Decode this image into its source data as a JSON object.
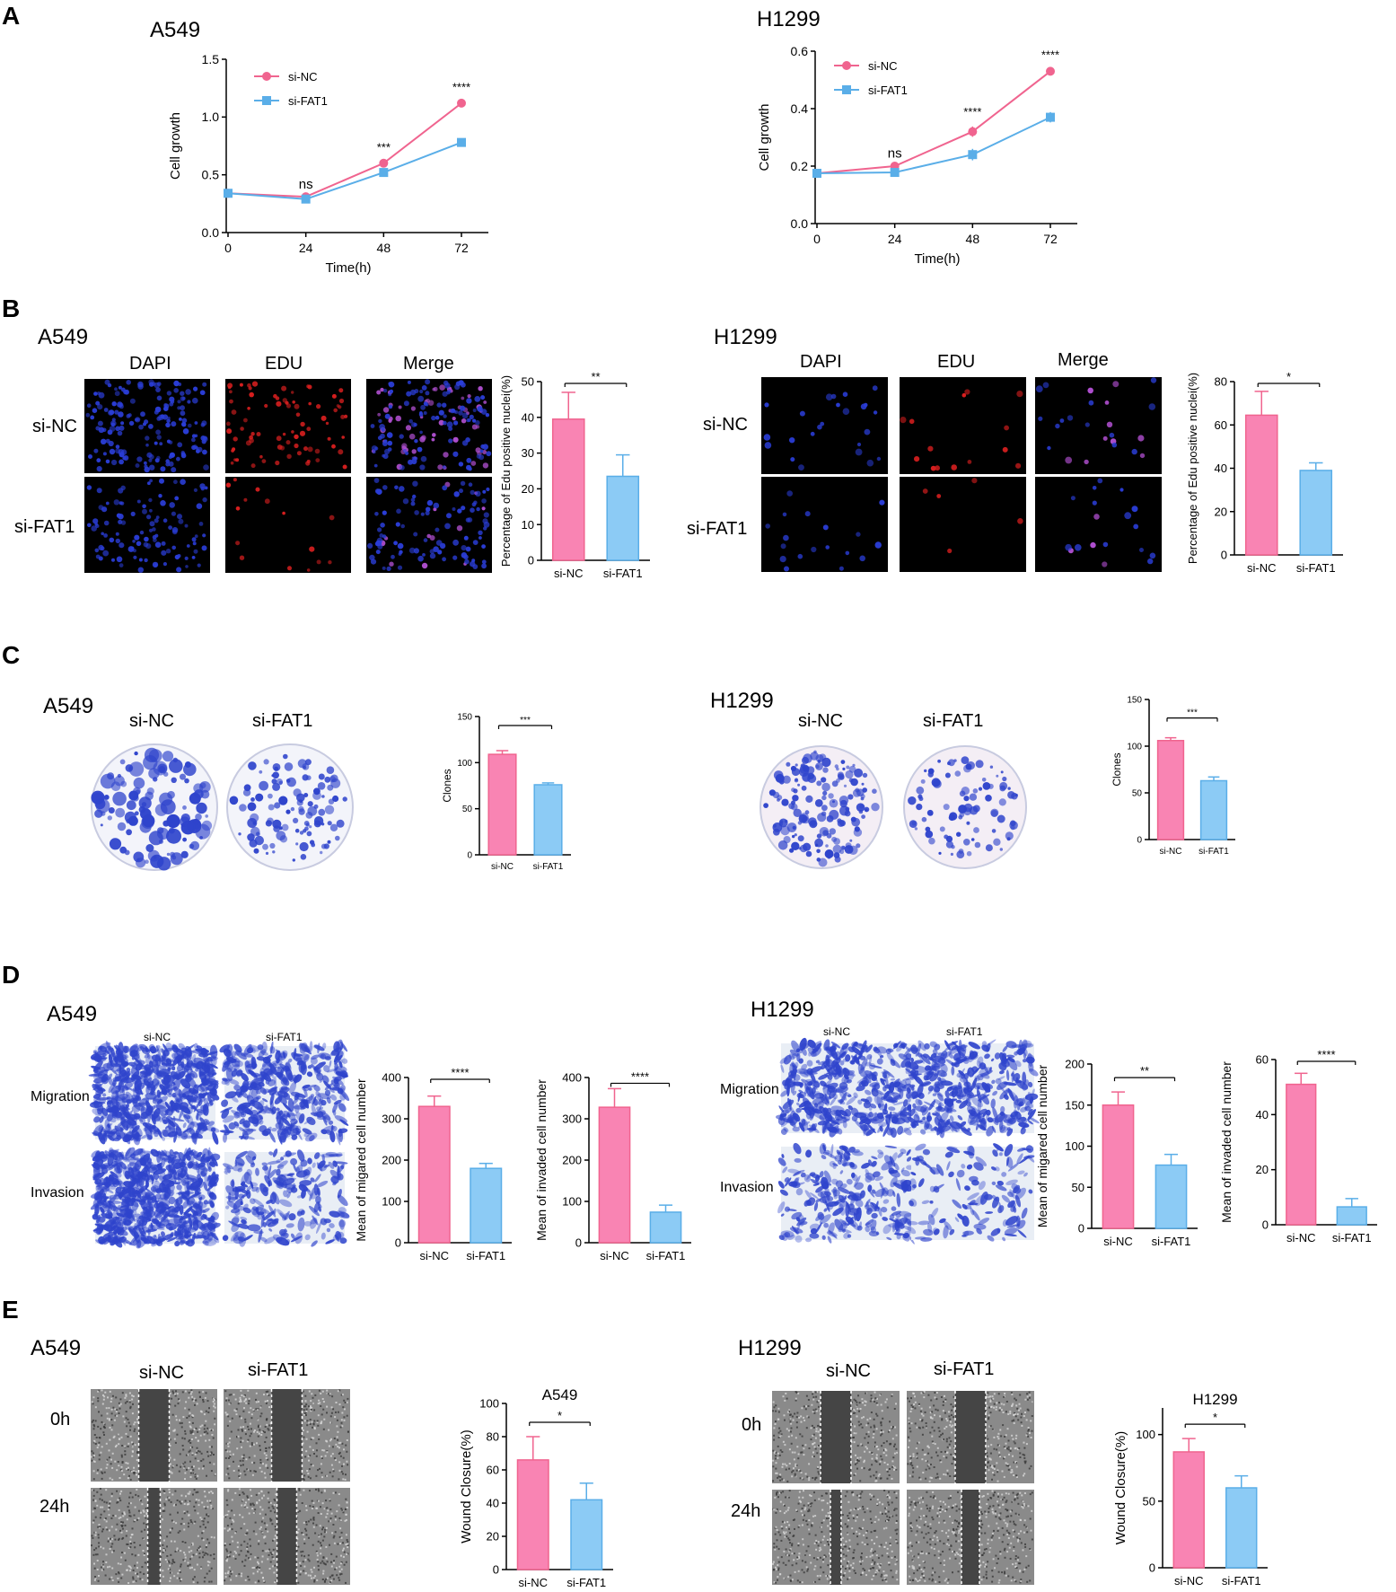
{
  "colors": {
    "pink": "#f0648f",
    "pink_fill": "#f984b3",
    "blue": "#5aaee8",
    "blue_fill": "#8ccbf5",
    "dapi": "#2a3dd6",
    "edu": "#d91f1f",
    "crystal": "#2f44cc"
  },
  "panels": {
    "A": {
      "letter": "A",
      "left": {
        "title": "A549"
      },
      "right": {
        "title": "H1299"
      }
    },
    "B": {
      "letter": "B",
      "left": {
        "title": "A549",
        "cols": [
          "DAPI",
          "EDU",
          "Merge"
        ],
        "rows": [
          "si-NC",
          "si-FAT1"
        ]
      },
      "right": {
        "title": "H1299",
        "cols": [
          "DAPI",
          "EDU",
          "Merge"
        ],
        "rows": [
          "si-NC",
          "si-FAT1"
        ]
      }
    },
    "C": {
      "letter": "C",
      "left": {
        "title": "A549",
        "cols": [
          "si-NC",
          "si-FAT1"
        ]
      },
      "right": {
        "title": "H1299",
        "cols": [
          "si-NC",
          "si-FAT1"
        ]
      }
    },
    "D": {
      "letter": "D",
      "left": {
        "title": "A549",
        "cols": [
          "si-NC",
          "si-FAT1"
        ],
        "rows": [
          "Migration",
          "Invasion"
        ]
      },
      "right": {
        "title": "H1299",
        "cols": [
          "si-NC",
          "si-FAT1"
        ],
        "rows": [
          "Migration",
          "Invasion"
        ]
      }
    },
    "E": {
      "letter": "E",
      "left": {
        "title": "A549",
        "cols": [
          "si-NC",
          "si-FAT1"
        ],
        "rows": [
          "0h",
          "24h"
        ]
      },
      "right": {
        "title": "H1299",
        "cols": [
          "si-NC",
          "si-FAT1"
        ],
        "rows": [
          "0h",
          "24h"
        ]
      }
    }
  },
  "chart_data": [
    {
      "id": "A_A549",
      "type": "line",
      "title": "A549",
      "xlabel": "Time(h)",
      "ylabel": "Cell growth",
      "x": [
        0,
        24,
        48,
        72
      ],
      "xticks": [
        "0",
        "24",
        "48",
        "72"
      ],
      "ylim": [
        0,
        1.5
      ],
      "yticks": [
        "0.0",
        "0.5",
        "1.0",
        "1.5"
      ],
      "legend": "top-left",
      "series": [
        {
          "name": "si-NC",
          "values": [
            0.34,
            0.31,
            0.6,
            1.12
          ],
          "err": [
            0.01,
            0.01,
            0.01,
            0.01
          ],
          "marker": "circle"
        },
        {
          "name": "si-FAT1",
          "values": [
            0.34,
            0.29,
            0.52,
            0.78
          ],
          "err": [
            0.01,
            0.01,
            0.01,
            0.01
          ],
          "marker": "square"
        }
      ],
      "annotations": [
        {
          "x": 24,
          "text": "ns"
        },
        {
          "x": 48,
          "text": "***"
        },
        {
          "x": 72,
          "text": "****"
        }
      ]
    },
    {
      "id": "A_H1299",
      "type": "line",
      "title": "H1299",
      "xlabel": "Time(h)",
      "ylabel": "Cell growth",
      "x": [
        0,
        24,
        48,
        72
      ],
      "xticks": [
        "0",
        "24",
        "48",
        "72"
      ],
      "ylim": [
        0,
        0.6
      ],
      "yticks": [
        "0.0",
        "0.2",
        "0.4",
        "0.6"
      ],
      "legend": "top-left",
      "series": [
        {
          "name": "si-NC",
          "values": [
            0.175,
            0.2,
            0.32,
            0.53
          ],
          "err": [
            0.004,
            0.005,
            0.018,
            0.006
          ],
          "marker": "circle"
        },
        {
          "name": "si-FAT1",
          "values": [
            0.175,
            0.178,
            0.24,
            0.37
          ],
          "err": [
            0.004,
            0.006,
            0.02,
            0.018
          ],
          "marker": "square"
        }
      ],
      "annotations": [
        {
          "x": 24,
          "text": "ns"
        },
        {
          "x": 48,
          "text": "****"
        },
        {
          "x": 72,
          "text": "****"
        }
      ]
    },
    {
      "id": "B_A549",
      "type": "bar",
      "ylabel": "Percentage of Edu positive nuclei(%)",
      "categories": [
        "si-NC",
        "si-FAT1"
      ],
      "values": [
        39.5,
        23.5
      ],
      "err": [
        7.5,
        6
      ],
      "ylim": [
        0,
        50
      ],
      "yticks": [
        "0",
        "10",
        "20",
        "30",
        "40",
        "50"
      ],
      "sig": "**"
    },
    {
      "id": "B_H1299",
      "type": "bar",
      "ylabel": "Percentage of Edu positive nuclei(%)",
      "categories": [
        "si-NC",
        "si-FAT1"
      ],
      "values": [
        64.5,
        39
      ],
      "err": [
        11,
        3.5
      ],
      "ylim": [
        0,
        80
      ],
      "yticks": [
        "0",
        "20",
        "40",
        "60",
        "80"
      ],
      "sig": "*"
    },
    {
      "id": "C_A549",
      "type": "bar",
      "ylabel": "Clones",
      "categories": [
        "si-NC",
        "si-FAT1"
      ],
      "values": [
        109,
        76
      ],
      "err": [
        4,
        2
      ],
      "ylim": [
        0,
        150
      ],
      "yticks": [
        "0",
        "50",
        "100",
        "150"
      ],
      "sig": "***"
    },
    {
      "id": "C_H1299",
      "type": "bar",
      "ylabel": "Clones",
      "categories": [
        "si-NC",
        "si-FAT1"
      ],
      "values": [
        106,
        63
      ],
      "err": [
        3,
        4
      ],
      "ylim": [
        0,
        150
      ],
      "yticks": [
        "0",
        "50",
        "100",
        "150"
      ],
      "sig": "***"
    },
    {
      "id": "D_A549_mig",
      "type": "bar",
      "ylabel": "Mean of migared cell number",
      "categories": [
        "si-NC",
        "si-FAT1"
      ],
      "values": [
        330,
        180
      ],
      "err": [
        25,
        12
      ],
      "ylim": [
        0,
        400
      ],
      "yticks": [
        "0",
        "100",
        "200",
        "300",
        "400"
      ],
      "sig": "****"
    },
    {
      "id": "D_A549_inv",
      "type": "bar",
      "ylabel": "Mean of invaded cell number",
      "categories": [
        "si-NC",
        "si-FAT1"
      ],
      "values": [
        328,
        74
      ],
      "err": [
        45,
        17
      ],
      "ylim": [
        0,
        400
      ],
      "yticks": [
        "0",
        "100",
        "200",
        "300",
        "400"
      ],
      "sig": "****"
    },
    {
      "id": "D_H1299_mig",
      "type": "bar",
      "ylabel": "Mean of migared cell number",
      "categories": [
        "si-NC",
        "si-FAT1"
      ],
      "values": [
        150,
        77
      ],
      "err": [
        16,
        13
      ],
      "ylim": [
        0,
        200
      ],
      "yticks": [
        "0",
        "50",
        "100",
        "150",
        "200"
      ],
      "sig": "**"
    },
    {
      "id": "D_H1299_inv",
      "type": "bar",
      "ylabel": "Mean of invaded cell number",
      "categories": [
        "si-NC",
        "si-FAT1"
      ],
      "values": [
        51,
        6.5
      ],
      "err": [
        4,
        3
      ],
      "ylim": [
        0,
        60
      ],
      "yticks": [
        "0",
        "20",
        "40",
        "60"
      ],
      "sig": "****"
    },
    {
      "id": "E_A549",
      "type": "bar",
      "title": "A549",
      "ylabel": "Wound Closure(%)",
      "categories": [
        "si-NC",
        "si-FAT1"
      ],
      "values": [
        66,
        42
      ],
      "err": [
        14,
        10
      ],
      "ylim": [
        0,
        100
      ],
      "yticks": [
        "0",
        "20",
        "40",
        "60",
        "80",
        "100"
      ],
      "sig": "*"
    },
    {
      "id": "E_H1299",
      "type": "bar",
      "title": "H1299",
      "ylabel": "Wound Closure(%)",
      "categories": [
        "si-NC",
        "si-FAT1"
      ],
      "values": [
        87,
        60
      ],
      "err": [
        10,
        9
      ],
      "ylim": [
        0,
        120
      ],
      "yticks": [
        "0",
        "50",
        "100"
      ],
      "sig": "*"
    }
  ]
}
